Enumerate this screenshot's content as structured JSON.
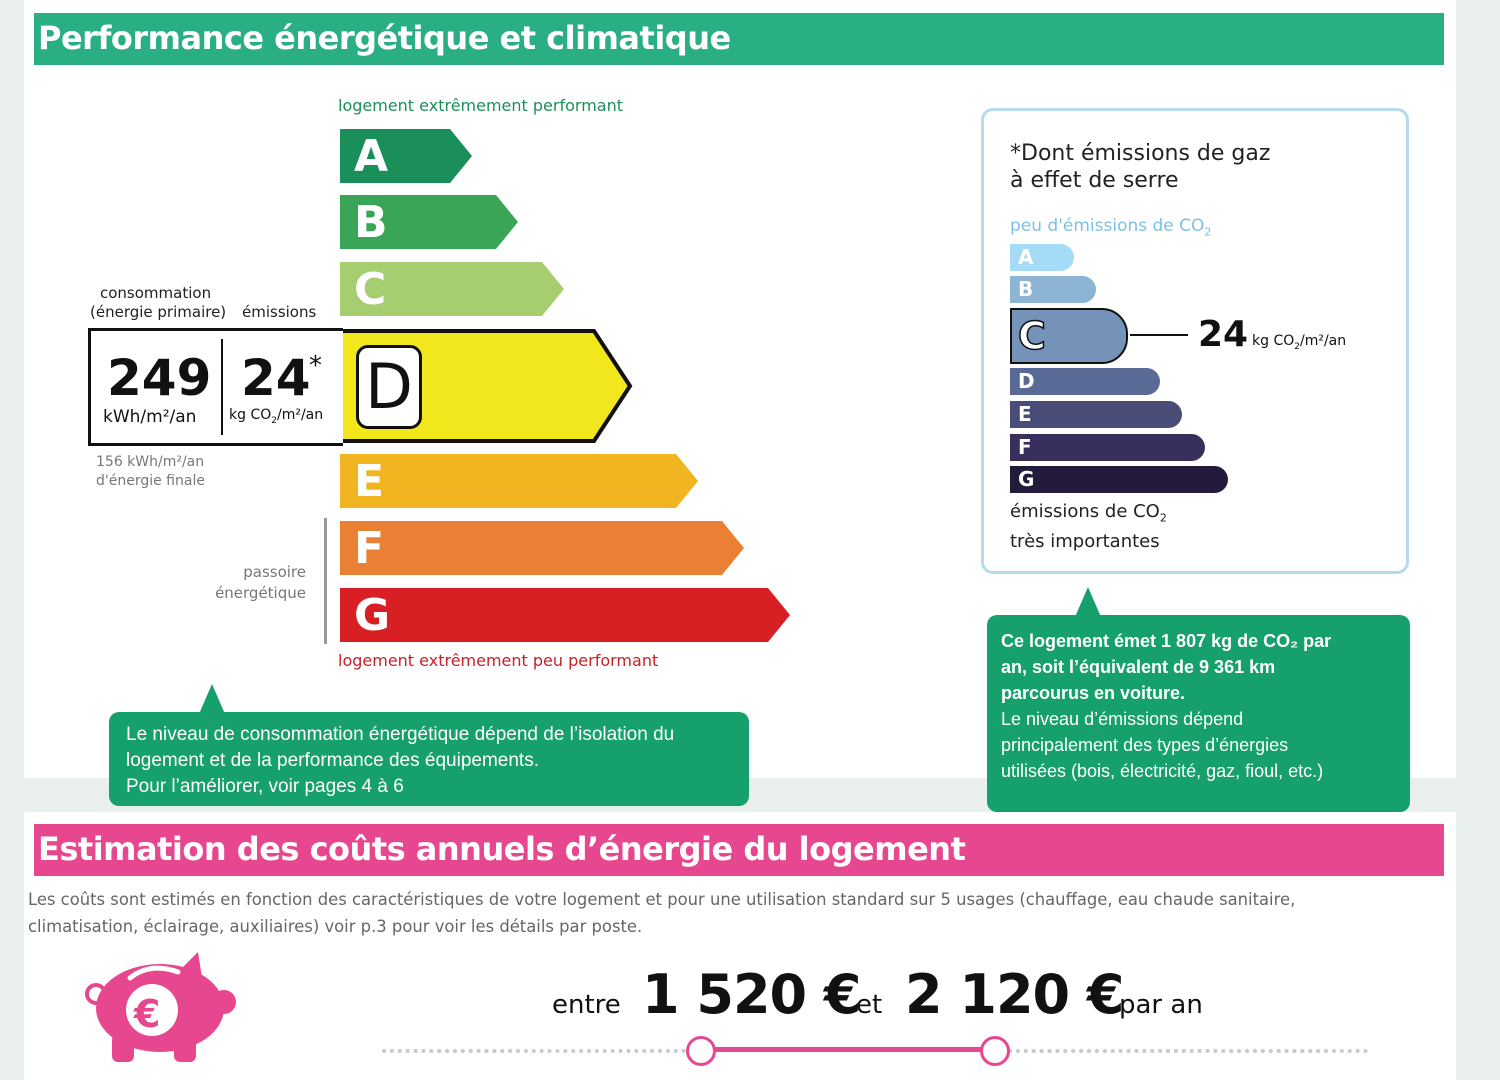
{
  "energy_section": {
    "title": "Performance énergétique et climatique",
    "top_label": "logement extrêmement performant",
    "bottom_label": "logement extrêmement peu performant",
    "classes": [
      {
        "letter": "A",
        "color": "#1b8f5a"
      },
      {
        "letter": "B",
        "color": "#3aa556"
      },
      {
        "letter": "C",
        "color": "#a6cd6f"
      },
      {
        "letter": "D",
        "color": "#f2e61c"
      },
      {
        "letter": "E",
        "color": "#f0b521"
      },
      {
        "letter": "F",
        "color": "#ea8033"
      },
      {
        "letter": "G",
        "color": "#d81f23"
      }
    ],
    "current_class": "D",
    "consumption_header_line1": "consommation",
    "consumption_header_line2": "(énergie primaire)",
    "emissions_header": "émissions",
    "consumption_value": "249",
    "consumption_unit": "kWh/m²/an",
    "emissions_value": "24",
    "emissions_asterisk": "*",
    "emissions_unit_prefix": "kg CO",
    "emissions_unit_sub": "2",
    "emissions_unit_suffix": "/m²/an",
    "final_energy_line1": "156 kWh/m²/an",
    "final_energy_line2": "d'énergie finale",
    "passoire_line1": "passoire",
    "passoire_line2": "énergétique",
    "tooltip": [
      "Le niveau de consommation énergétique dépend de l’isolation du",
      "logement et de la performance des équipements.",
      "Pour l’améliorer, voir pages 4 à 6"
    ]
  },
  "ges_panel": {
    "title_line1": "*Dont émissions de gaz",
    "title_line2": "à effet de serre",
    "top_label": "peu d'émissions de CO",
    "bottom_label_line1": "émissions de CO",
    "bottom_label_line2": "très importantes",
    "sub2": "2",
    "classes": [
      {
        "letter": "A",
        "color": "#a5dbf6"
      },
      {
        "letter": "B",
        "color": "#8cb4d5"
      },
      {
        "letter": "C",
        "color": "#7592b8"
      },
      {
        "letter": "D",
        "color": "#5a6a97"
      },
      {
        "letter": "E",
        "color": "#4a4d78"
      },
      {
        "letter": "F",
        "color": "#392f5c"
      },
      {
        "letter": "G",
        "color": "#241a3c"
      }
    ],
    "current_class": "C",
    "value": "24",
    "unit_prefix": "kg CO",
    "unit_suffix": "/m²/an",
    "tooltip_bold": [
      "Ce logement émet 1 807 kg de CO₂ par",
      "an, soit l’équivalent de 9 361 km",
      "parcourus en voiture."
    ],
    "tooltip_regular": [
      "Le niveau d’émissions dépend",
      "principalement des types d’énergies",
      "utilisées (bois, électricité, gaz, fioul, etc.)"
    ]
  },
  "cost_section": {
    "title": "Estimation des coûts annuels d’énergie du logement",
    "description_line1": "Les coûts sont estimés en fonction des caractéristiques de votre logement et pour une utilisation standard sur 5 usages (chauffage, eau chaude sanitaire,",
    "description_line2": "climatisation, éclairage, auxiliaires) voir p.3 pour voir les détails par poste.",
    "word_entre": "entre",
    "min_cost": "1 520 €",
    "word_et": "et",
    "max_cost": "2 120 €",
    "word_par_an": "par an",
    "piggy_symbol": "€",
    "accent_color": "#e6478f"
  }
}
